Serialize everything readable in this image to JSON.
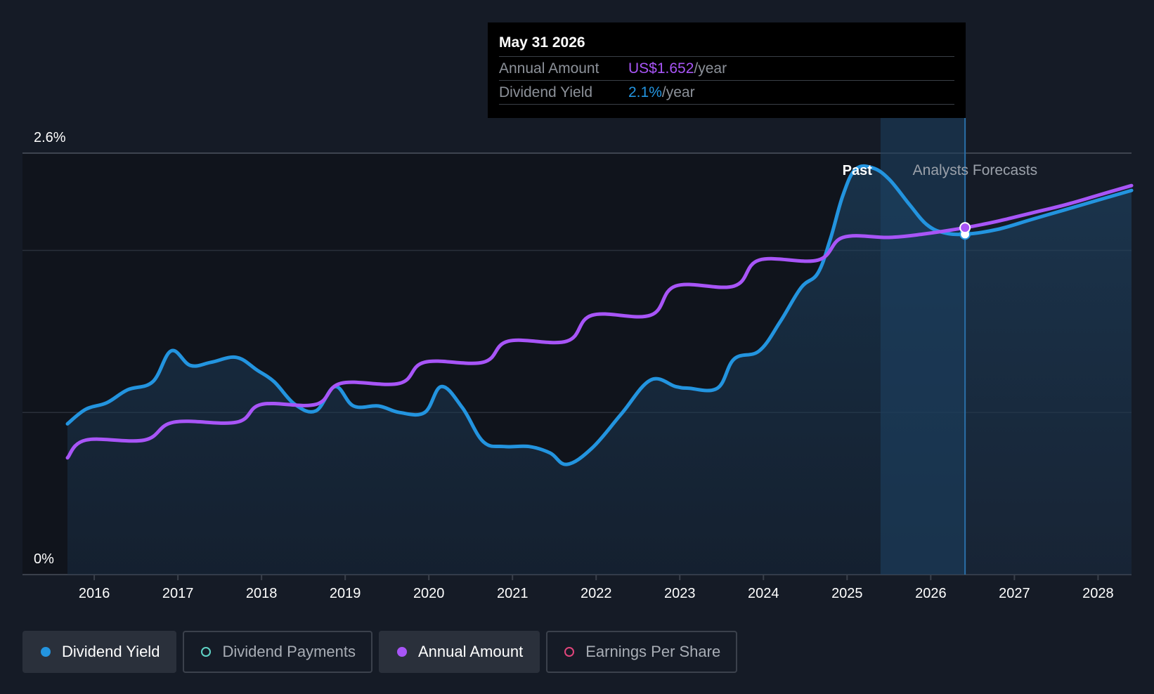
{
  "tooltip": {
    "date": "May 31 2026",
    "annual_label": "Annual Amount",
    "annual_value": "US$1.652",
    "annual_unit": "/year",
    "yield_label": "Dividend Yield",
    "yield_value": "2.1%",
    "yield_unit": "/year"
  },
  "labels": {
    "past": "Past",
    "forecast": "Analysts Forecasts"
  },
  "legend": [
    {
      "label": "Dividend Yield",
      "color": "#2394df",
      "style": "filled",
      "active": true
    },
    {
      "label": "Dividend Payments",
      "color": "#5fd3c6",
      "style": "hollow",
      "active": false
    },
    {
      "label": "Annual Amount",
      "color": "#a855f7",
      "style": "filled",
      "active": true
    },
    {
      "label": "Earnings Per Share",
      "color": "#e0457b",
      "style": "hollow",
      "active": false
    }
  ],
  "colors": {
    "background": "#151b26",
    "yield": "#2394df",
    "annual": "#a855f7",
    "grid": "#2e3440"
  },
  "chart_data": {
    "type": "line",
    "ylabel_ticks": [
      "0%",
      "2.6%"
    ],
    "ylim": [
      0,
      2.6
    ],
    "xlim": [
      2015.68,
      2028.4
    ],
    "x_ticks": [
      2016,
      2017,
      2018,
      2019,
      2020,
      2021,
      2022,
      2023,
      2024,
      2025,
      2026,
      2027,
      2028
    ],
    "past_end": 2025.4,
    "forecast_start": 2025.65,
    "cursor_x": 2026.41,
    "series": [
      {
        "name": "Dividend Yield",
        "unit": "%",
        "points": [
          [
            2015.68,
            0.93
          ],
          [
            2015.9,
            1.02
          ],
          [
            2016.15,
            1.06
          ],
          [
            2016.4,
            1.14
          ],
          [
            2016.7,
            1.19
          ],
          [
            2016.92,
            1.38
          ],
          [
            2017.15,
            1.29
          ],
          [
            2017.4,
            1.31
          ],
          [
            2017.7,
            1.34
          ],
          [
            2017.95,
            1.26
          ],
          [
            2018.15,
            1.19
          ],
          [
            2018.4,
            1.05
          ],
          [
            2018.65,
            1.01
          ],
          [
            2018.88,
            1.16
          ],
          [
            2019.1,
            1.04
          ],
          [
            2019.4,
            1.04
          ],
          [
            2019.65,
            1.0
          ],
          [
            2019.95,
            1.0
          ],
          [
            2020.15,
            1.16
          ],
          [
            2020.4,
            1.03
          ],
          [
            2020.65,
            0.82
          ],
          [
            2020.9,
            0.79
          ],
          [
            2021.2,
            0.79
          ],
          [
            2021.45,
            0.75
          ],
          [
            2021.65,
            0.68
          ],
          [
            2021.95,
            0.78
          ],
          [
            2022.3,
            0.99
          ],
          [
            2022.65,
            1.2
          ],
          [
            2022.95,
            1.16
          ],
          [
            2023.1,
            1.15
          ],
          [
            2023.45,
            1.15
          ],
          [
            2023.65,
            1.33
          ],
          [
            2023.95,
            1.38
          ],
          [
            2024.2,
            1.56
          ],
          [
            2024.45,
            1.77
          ],
          [
            2024.65,
            1.86
          ],
          [
            2024.8,
            2.07
          ],
          [
            2024.95,
            2.34
          ],
          [
            2025.1,
            2.5
          ],
          [
            2025.3,
            2.51
          ],
          [
            2025.5,
            2.44
          ],
          [
            2025.75,
            2.28
          ],
          [
            2025.95,
            2.16
          ],
          [
            2026.15,
            2.11
          ],
          [
            2026.41,
            2.1
          ],
          [
            2026.8,
            2.13
          ],
          [
            2027.2,
            2.19
          ],
          [
            2027.6,
            2.25
          ],
          [
            2028.0,
            2.31
          ],
          [
            2028.4,
            2.37
          ]
        ]
      },
      {
        "name": "Annual Amount",
        "unit": "%",
        "points": [
          [
            2015.68,
            0.72
          ],
          [
            2015.9,
            0.83
          ],
          [
            2016.6,
            0.83
          ],
          [
            2016.95,
            0.94
          ],
          [
            2017.7,
            0.94
          ],
          [
            2018.0,
            1.05
          ],
          [
            2018.65,
            1.05
          ],
          [
            2018.95,
            1.18
          ],
          [
            2019.65,
            1.18
          ],
          [
            2019.95,
            1.31
          ],
          [
            2020.65,
            1.31
          ],
          [
            2020.95,
            1.44
          ],
          [
            2021.65,
            1.44
          ],
          [
            2021.95,
            1.6
          ],
          [
            2022.65,
            1.6
          ],
          [
            2022.95,
            1.78
          ],
          [
            2023.65,
            1.78
          ],
          [
            2023.95,
            1.94
          ],
          [
            2024.65,
            1.94
          ],
          [
            2024.95,
            2.08
          ],
          [
            2025.5,
            2.08
          ],
          [
            2025.9,
            2.1
          ],
          [
            2026.41,
            2.14
          ],
          [
            2026.8,
            2.18
          ],
          [
            2027.2,
            2.23
          ],
          [
            2027.6,
            2.28
          ],
          [
            2028.0,
            2.34
          ],
          [
            2028.4,
            2.4
          ]
        ]
      }
    ]
  }
}
